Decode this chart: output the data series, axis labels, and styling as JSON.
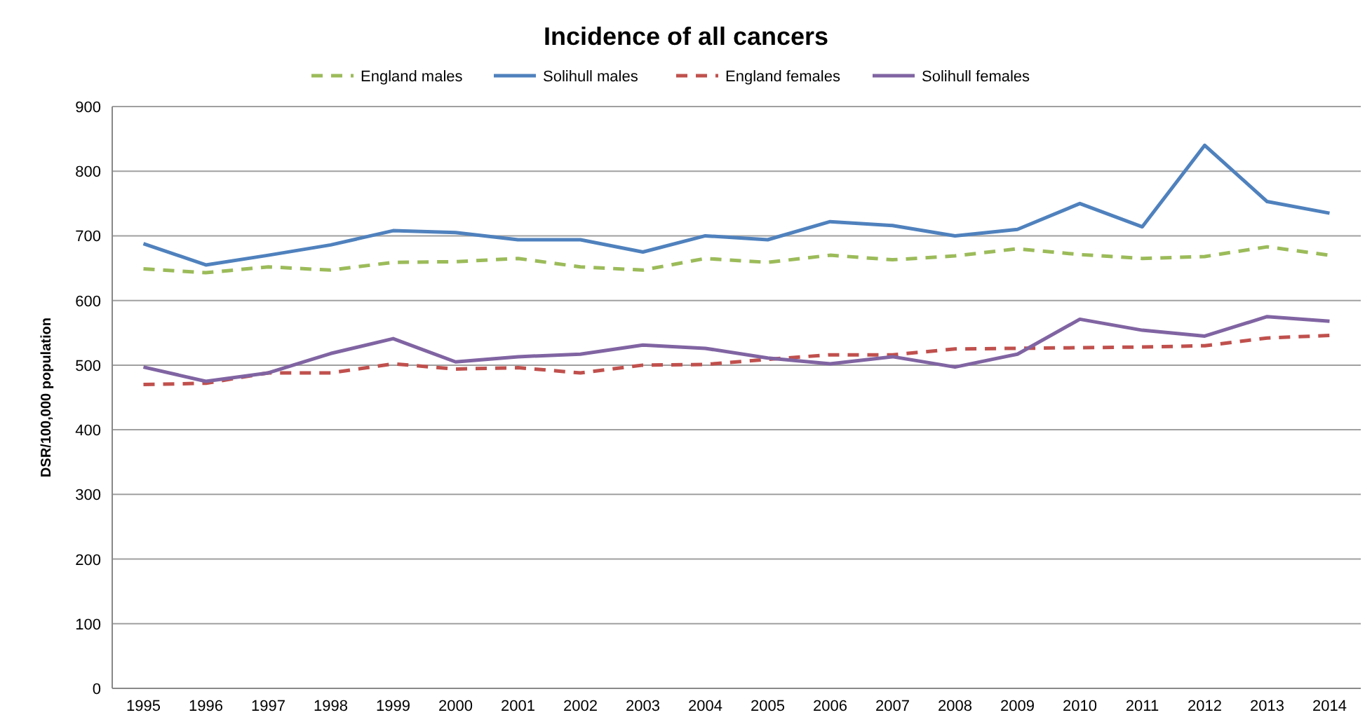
{
  "chart_data": {
    "type": "line",
    "title": "Incidence of all cancers",
    "ylabel": "DSR/100,000 population",
    "categories": [
      "1995",
      "1996",
      "1997",
      "1998",
      "1999",
      "2000",
      "2001",
      "2002",
      "2003",
      "2004",
      "2005",
      "2006",
      "2007",
      "2008",
      "2009",
      "2010",
      "2011",
      "2012",
      "2013",
      "2014"
    ],
    "series": [
      {
        "name": "England males",
        "color": "#9bbb59",
        "line_style": "dashed",
        "values": [
          649,
          643,
          652,
          647,
          659,
          660,
          665,
          652,
          647,
          665,
          659,
          670,
          663,
          669,
          680,
          671,
          665,
          668,
          683,
          670
        ]
      },
      {
        "name": "Solihull males",
        "color": "#4f81bd",
        "line_style": "solid",
        "values": [
          688,
          655,
          670,
          686,
          708,
          705,
          694,
          694,
          675,
          700,
          694,
          722,
          716,
          700,
          710,
          750,
          714,
          840,
          753,
          735
        ]
      },
      {
        "name": "England females",
        "color": "#c0504d",
        "line_style": "dashed",
        "values": [
          470,
          472,
          488,
          488,
          502,
          494,
          496,
          488,
          500,
          501,
          509,
          516,
          516,
          525,
          526,
          527,
          528,
          530,
          542,
          546
        ]
      },
      {
        "name": "Solihull females",
        "color": "#8064a2",
        "line_style": "solid",
        "values": [
          497,
          475,
          488,
          518,
          541,
          505,
          513,
          517,
          531,
          526,
          511,
          502,
          513,
          497,
          517,
          571,
          554,
          545,
          575,
          568
        ]
      }
    ],
    "ylim": [
      0,
      900
    ],
    "yticks": [
      0,
      100,
      200,
      300,
      400,
      500,
      600,
      700,
      800,
      900
    ],
    "grid": "y",
    "legend": "top",
    "marker": "none"
  }
}
